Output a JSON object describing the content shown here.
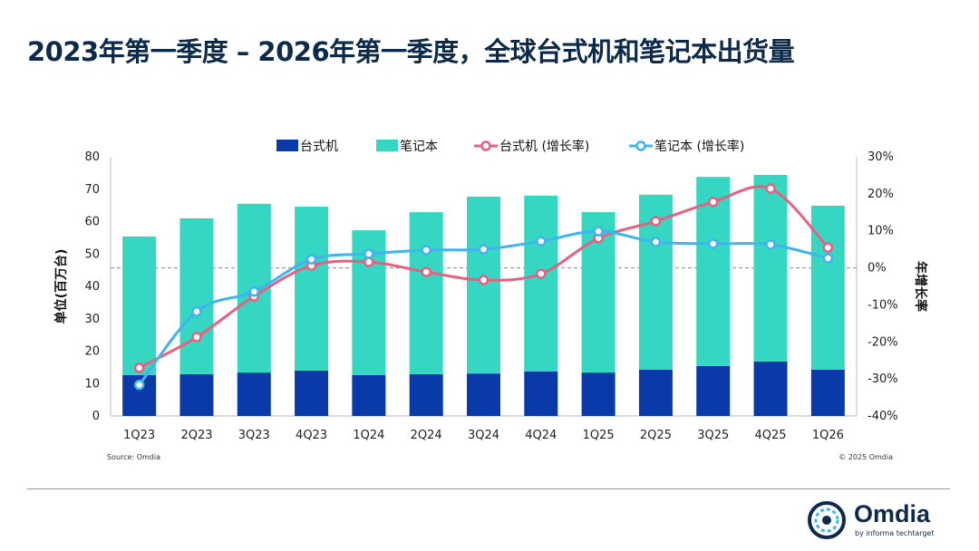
{
  "title": "2023年第一季度 – 2026年第一季度，全球台式机和笔记本出货量",
  "logo": {
    "name": "Omdia",
    "sub": "by informa techtarget"
  },
  "chart_data": {
    "type": "bar",
    "title": "",
    "categories": [
      "1Q23",
      "2Q23",
      "3Q23",
      "4Q23",
      "1Q24",
      "2Q24",
      "3Q24",
      "4Q24",
      "1Q25",
      "2Q25",
      "3Q25",
      "4Q25",
      "1Q26"
    ],
    "ylabel": "单位(百万台)",
    "y2label": "年增长率",
    "ylim": [
      0,
      80
    ],
    "y2lim": [
      -40,
      30
    ],
    "yticks": [
      "0",
      "10",
      "20",
      "30",
      "40",
      "50",
      "60",
      "70",
      "80"
    ],
    "y2ticks": [
      "-40%",
      "-30%",
      "-20%",
      "-10%",
      "0%",
      "10%",
      "20%",
      "30%"
    ],
    "legend_position": "top",
    "colors": {
      "desktop": "#0a3aa8",
      "notebook": "#35d6c2",
      "desktop_growth": "#e8607f",
      "notebook_growth": "#3fb4ee"
    },
    "series": [
      {
        "name": "台式机",
        "kind": "stacked-bar",
        "values": [
          12.6,
          12.9,
          13.4,
          14.0,
          12.6,
          12.9,
          13.1,
          13.7,
          13.4,
          14.3,
          15.4,
          16.8,
          14.3
        ]
      },
      {
        "name": "笔记本",
        "kind": "stacked-bar",
        "values": [
          42.8,
          48.1,
          52.1,
          50.6,
          44.7,
          50.0,
          54.6,
          54.3,
          49.5,
          54.0,
          58.4,
          57.6,
          50.6
        ]
      },
      {
        "name": "台式机 (增长率)",
        "kind": "line",
        "axis": "right",
        "values": [
          -27.0,
          -18.7,
          -7.7,
          0.6,
          1.6,
          -1.1,
          -3.3,
          -1.6,
          8.0,
          12.6,
          17.8,
          21.4,
          5.5
        ]
      },
      {
        "name": "笔记本 (增长率)",
        "kind": "line",
        "axis": "right",
        "values": [
          -31.6,
          -11.8,
          -6.4,
          2.3,
          3.8,
          4.8,
          5.0,
          7.2,
          9.9,
          7.0,
          6.5,
          6.3,
          2.6
        ]
      }
    ],
    "source": "Source: Omdia",
    "copyright": "© 2025 Omdia"
  }
}
